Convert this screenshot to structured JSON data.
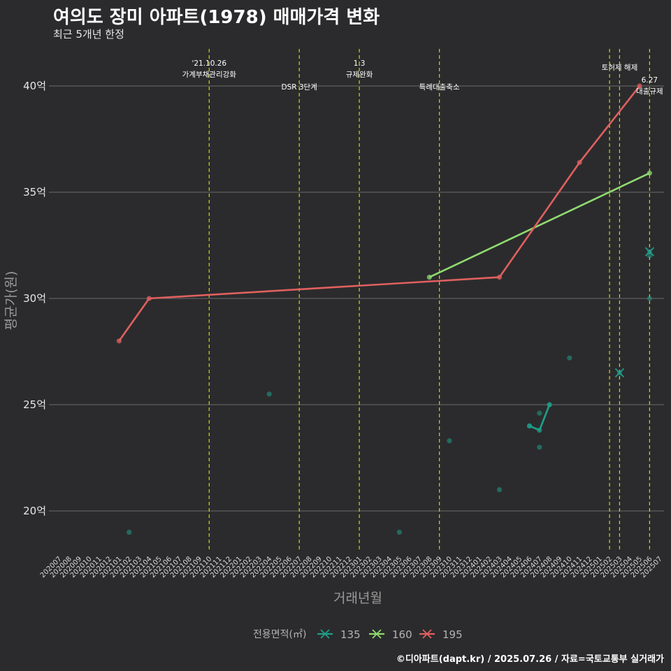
{
  "header": {
    "title": "여의도 장미 아파트(1978) 매매가격 변화",
    "subtitle": "최근 5개년 한정"
  },
  "footer": {
    "caption": "©디아파트(dapt.kr) / 2025.07.26 / 자료=국토교통부 실거래가"
  },
  "chart_data": {
    "type": "line",
    "xlabel": "거래년월",
    "ylabel": "평균가(원)",
    "categories": [
      "202007",
      "202008",
      "202009",
      "202010",
      "202011",
      "202012",
      "202101",
      "202102",
      "202103",
      "202104",
      "202105",
      "202106",
      "202107",
      "202108",
      "202109",
      "202110",
      "202111",
      "202112",
      "202201",
      "202202",
      "202203",
      "202204",
      "202205",
      "202206",
      "202207",
      "202208",
      "202209",
      "202210",
      "202211",
      "202212",
      "202301",
      "202302",
      "202303",
      "202304",
      "202305",
      "202306",
      "202307",
      "202308",
      "202309",
      "202310",
      "202311",
      "202312",
      "202401",
      "202402",
      "202403",
      "202404",
      "202405",
      "202406",
      "202407",
      "202408",
      "202409",
      "202410",
      "202411",
      "202412",
      "202501",
      "202502",
      "202503",
      "202504",
      "202505",
      "202506",
      "202507"
    ],
    "ylim": [
      18,
      41.5
    ],
    "yticks": [
      20,
      25,
      30,
      35,
      40
    ],
    "ytick_labels": [
      "20억",
      "25억",
      "30억",
      "35억",
      "40억"
    ],
    "grid": "horizontal",
    "legend": {
      "title": "전용면적(㎡)",
      "position": "bottom",
      "items": [
        {
          "label": "135",
          "color": "#1f9e89"
        },
        {
          "label": "160",
          "color": "#8fdb6f"
        },
        {
          "label": "195",
          "color": "#e0605f"
        }
      ]
    },
    "series": [
      {
        "name": "135",
        "color": "#1f9e89",
        "line": [
          {
            "x": "202406",
            "y": 24.0
          },
          {
            "x": "202407",
            "y": 23.8
          },
          {
            "x": "202408",
            "y": 25.0
          }
        ],
        "points": [
          {
            "x": "202102",
            "y": 19.0
          },
          {
            "x": "202204",
            "y": 25.5
          },
          {
            "x": "202305",
            "y": 19.0
          },
          {
            "x": "202310",
            "y": 23.3
          },
          {
            "x": "202403",
            "y": 21.0
          },
          {
            "x": "202406",
            "y": 24.0
          },
          {
            "x": "202407",
            "y": 24.6
          },
          {
            "x": "202407",
            "y": 23.0
          },
          {
            "x": "202408",
            "y": 25.0
          },
          {
            "x": "202410",
            "y": 27.2
          },
          {
            "x": "202506",
            "y": 32.0
          },
          {
            "x": "202506",
            "y": 30.0
          }
        ],
        "cross_marks": [
          {
            "x": "202503",
            "y": 26.5
          },
          {
            "x": "202506",
            "y": 32.2
          }
        ]
      },
      {
        "name": "160",
        "color": "#8fdb6f",
        "line": [
          {
            "x": "202308",
            "y": 31.0
          },
          {
            "x": "202506",
            "y": 35.9
          }
        ]
      },
      {
        "name": "195",
        "color": "#e0605f",
        "line": [
          {
            "x": "202101",
            "y": 28.0
          },
          {
            "x": "202104",
            "y": 30.0
          },
          {
            "x": "202403",
            "y": 31.0
          },
          {
            "x": "202411",
            "y": 36.4
          },
          {
            "x": "202505",
            "y": 40.0
          }
        ]
      }
    ],
    "vlines": [
      {
        "x": "202110",
        "lines": [
          "'21.10.26",
          "가계부채관리강화"
        ],
        "row": 0
      },
      {
        "x": "202207",
        "lines": [
          "DSR 3단계"
        ],
        "row": 2
      },
      {
        "x": "202301",
        "lines": [
          "1.3",
          "규제완화"
        ],
        "row": 0
      },
      {
        "x": "202309",
        "lines": [
          "특례대출축소"
        ],
        "row": 2
      },
      {
        "x": "202502",
        "lines": [],
        "row": 0
      },
      {
        "x": "202503",
        "lines": [
          "토허제 해제"
        ],
        "row": 1
      },
      {
        "x": "202506",
        "lines": [
          "6.27",
          "대출규제"
        ],
        "row": 3
      }
    ]
  }
}
